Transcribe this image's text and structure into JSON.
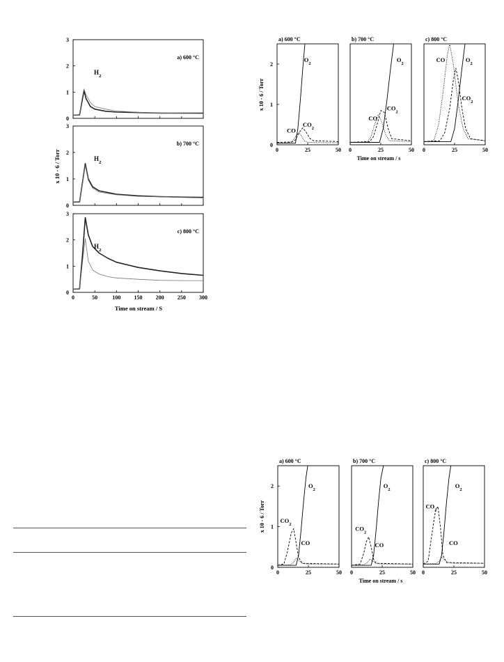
{
  "chart_data": [
    {
      "type": "line",
      "group": "H2 traces (stacked panels)",
      "xlabel": "Time on stream / S",
      "ylabel": "x 10 - 6 / Torr",
      "xlim": [
        0,
        300
      ],
      "ylim": [
        0,
        3
      ],
      "xticks": [
        0,
        50,
        100,
        150,
        200,
        250,
        300
      ],
      "yticks": [
        0,
        1,
        2,
        3
      ],
      "panels": [
        {
          "label": "a) 600 °C",
          "annotation": "H2",
          "series": [
            {
              "style": "solid-thick",
              "x": [
                0,
                15,
                20,
                25,
                30,
                40,
                50,
                75,
                100,
                150,
                200,
                250,
                300
              ],
              "y": [
                0.12,
                0.13,
                0.6,
                1.05,
                0.75,
                0.45,
                0.35,
                0.27,
                0.24,
                0.22,
                0.2,
                0.2,
                0.2
              ]
            },
            {
              "style": "solid-thin",
              "x": [
                0,
                15,
                20,
                25,
                30,
                40,
                50,
                75,
                100,
                150,
                200,
                250,
                300
              ],
              "y": [
                0.12,
                0.14,
                0.7,
                1.12,
                0.9,
                0.6,
                0.45,
                0.35,
                0.28,
                0.23,
                0.2,
                0.19,
                0.18
              ]
            }
          ]
        },
        {
          "label": "b) 700 °C",
          "annotation": "H2",
          "series": [
            {
              "style": "solid-thick",
              "x": [
                0,
                15,
                22,
                28,
                35,
                45,
                60,
                100,
                150,
                200,
                250,
                300
              ],
              "y": [
                0.12,
                0.13,
                0.9,
                1.58,
                1.0,
                0.7,
                0.55,
                0.42,
                0.36,
                0.33,
                0.31,
                0.3
              ]
            },
            {
              "style": "solid-thin",
              "x": [
                0,
                15,
                22,
                28,
                35,
                45,
                60,
                100,
                150,
                200,
                250,
                300
              ],
              "y": [
                0.12,
                0.13,
                0.85,
                1.5,
                0.95,
                0.65,
                0.5,
                0.4,
                0.34,
                0.32,
                0.3,
                0.28
              ]
            }
          ]
        },
        {
          "label": "c) 800 °C",
          "annotation": "H2",
          "series": [
            {
              "style": "solid-thick",
              "x": [
                0,
                15,
                22,
                28,
                35,
                45,
                60,
                80,
                100,
                150,
                200,
                250,
                300
              ],
              "y": [
                0.12,
                0.13,
                1.5,
                2.85,
                2.2,
                1.75,
                1.5,
                1.3,
                1.15,
                0.95,
                0.82,
                0.72,
                0.65
              ]
            },
            {
              "style": "solid-thin",
              "x": [
                0,
                15,
                22,
                28,
                35,
                45,
                60,
                80,
                100,
                150,
                200,
                250,
                300
              ],
              "y": [
                0.12,
                0.13,
                1.2,
                2.05,
                1.2,
                0.85,
                0.7,
                0.6,
                0.55,
                0.5,
                0.46,
                0.45,
                0.45
              ]
            }
          ]
        }
      ]
    },
    {
      "type": "line",
      "group": "top-right row",
      "xlabel": "Time on stream / s",
      "ylabel": "x 10 - 6 / Torr",
      "xlim": [
        0,
        50
      ],
      "ylim": [
        0,
        2.5
      ],
      "xticks": [
        0,
        25,
        50
      ],
      "yticks": [
        0,
        1,
        2
      ],
      "panels": [
        {
          "label": "a) 600 °C",
          "annotations": [
            {
              "text": "O2",
              "at": [
                22,
                2.05
              ]
            },
            {
              "text": "CO",
              "at": [
                8,
                0.3
              ]
            },
            {
              "text": "CO2",
              "at": [
                21,
                0.45
              ]
            }
          ],
          "series": [
            {
              "name": "O2",
              "style": "solid",
              "x": [
                0,
                15,
                17,
                19,
                21,
                22.7
              ],
              "y": [
                0.04,
                0.04,
                0.4,
                1.1,
                1.9,
                2.5
              ]
            },
            {
              "name": "CO",
              "style": "dotted",
              "x": [
                0,
                10,
                13,
                16,
                18,
                20,
                22,
                25,
                50
              ],
              "y": [
                0.04,
                0.05,
                0.1,
                0.25,
                0.3,
                0.22,
                0.1,
                0.06,
                0.05
              ]
            },
            {
              "name": "CO2",
              "style": "dashed",
              "x": [
                0,
                12,
                15,
                18,
                21,
                24,
                27,
                30,
                50
              ],
              "y": [
                0.06,
                0.07,
                0.12,
                0.3,
                0.42,
                0.3,
                0.15,
                0.1,
                0.08
              ]
            }
          ]
        },
        {
          "label": "b) 700 °C",
          "annotations": [
            {
              "text": "O2",
              "at": [
                38,
                2.05
              ]
            },
            {
              "text": "CO",
              "at": [
                15,
                0.6
              ]
            },
            {
              "text": "CO2",
              "at": [
                30,
                0.85
              ]
            }
          ],
          "series": [
            {
              "name": "O2",
              "style": "solid",
              "x": [
                0,
                24,
                27,
                30,
                33,
                35.5
              ],
              "y": [
                0.06,
                0.06,
                0.4,
                1.1,
                1.9,
                2.5
              ]
            },
            {
              "name": "CO",
              "style": "dotted",
              "x": [
                0,
                14,
                17,
                20,
                23,
                26,
                29,
                32,
                50
              ],
              "y": [
                0.06,
                0.07,
                0.2,
                0.5,
                0.75,
                0.55,
                0.25,
                0.1,
                0.08
              ]
            },
            {
              "name": "CO2",
              "style": "dashed",
              "x": [
                0,
                16,
                19,
                22,
                25,
                28,
                31,
                34,
                50
              ],
              "y": [
                0.06,
                0.08,
                0.2,
                0.5,
                0.85,
                0.8,
                0.4,
                0.15,
                0.1
              ]
            }
          ]
        },
        {
          "label": "c) 800 °C",
          "annotations": [
            {
              "text": "CO",
              "at": [
                10,
                2.05
              ]
            },
            {
              "text": "O2",
              "at": [
                34,
                2.05
              ]
            },
            {
              "text": "CO2",
              "at": [
                31,
                1.1
              ]
            }
          ],
          "series": [
            {
              "name": "O2",
              "style": "solid",
              "x": [
                0,
                22,
                25,
                28,
                31,
                33.5
              ],
              "y": [
                0.08,
                0.08,
                0.4,
                1.1,
                1.9,
                2.5
              ]
            },
            {
              "name": "CO",
              "style": "dotted",
              "x": [
                0,
                8,
                12,
                16,
                19,
                21,
                24,
                28,
                32,
                36,
                50
              ],
              "y": [
                0.08,
                0.1,
                0.5,
                1.4,
                2.2,
                2.5,
                2.0,
                1.0,
                0.4,
                0.15,
                0.1
              ]
            },
            {
              "name": "CO2",
              "style": "dashed",
              "x": [
                0,
                13,
                17,
                21,
                24,
                26,
                28,
                31,
                34,
                38,
                50
              ],
              "y": [
                0.08,
                0.1,
                0.3,
                0.9,
                1.6,
                1.9,
                1.6,
                0.9,
                0.4,
                0.15,
                0.1
              ]
            }
          ]
        }
      ]
    },
    {
      "type": "line",
      "group": "bottom-right row",
      "xlabel": "Time on stream / s",
      "ylabel": "x 10 - 6 / Torr",
      "xlim": [
        0,
        50
      ],
      "ylim": [
        0,
        2.5
      ],
      "xticks": [
        0,
        25,
        50
      ],
      "yticks": [
        0,
        1,
        2
      ],
      "panels": [
        {
          "label": "a) 600 °C",
          "annotations": [
            {
              "text": "O2",
              "at": [
                25,
                1.95
              ]
            },
            {
              "text": "CO2",
              "at": [
                2,
                1.1
              ]
            },
            {
              "text": "CO",
              "at": [
                19,
                0.55
              ]
            }
          ],
          "series": [
            {
              "name": "O2",
              "style": "solid",
              "x": [
                0,
                15,
                17,
                19,
                21,
                23,
                24.5
              ],
              "y": [
                0.05,
                0.05,
                0.3,
                0.9,
                1.6,
                2.2,
                2.5
              ]
            },
            {
              "name": "CO2",
              "style": "dashed",
              "x": [
                0,
                5,
                8,
                11,
                13,
                15,
                17,
                20,
                50
              ],
              "y": [
                0.05,
                0.08,
                0.4,
                0.85,
                0.95,
                0.6,
                0.25,
                0.1,
                0.08
              ]
            },
            {
              "name": "CO",
              "style": "dotted",
              "x": [
                0,
                10,
                13,
                15,
                17,
                20,
                25,
                50
              ],
              "y": [
                0.05,
                0.06,
                0.12,
                0.22,
                0.18,
                0.1,
                0.08,
                0.08
              ]
            }
          ]
        },
        {
          "label": "b) 700 °C",
          "annotations": [
            {
              "text": "O2",
              "at": [
                26,
                1.95
              ]
            },
            {
              "text": "CO2",
              "at": [
                3,
                0.9
              ]
            },
            {
              "text": "CO",
              "at": [
                19,
                0.5
              ]
            }
          ],
          "series": [
            {
              "name": "O2",
              "style": "solid",
              "x": [
                0,
                16,
                18,
                20,
                22,
                24,
                26
              ],
              "y": [
                0.05,
                0.05,
                0.3,
                0.9,
                1.6,
                2.2,
                2.5
              ]
            },
            {
              "name": "CO2",
              "style": "dashed",
              "x": [
                0,
                7,
                10,
                12,
                14,
                16,
                18,
                20,
                50
              ],
              "y": [
                0.05,
                0.08,
                0.35,
                0.62,
                0.75,
                0.5,
                0.2,
                0.1,
                0.08
              ]
            },
            {
              "name": "CO",
              "style": "dotted",
              "x": [
                0,
                10,
                13,
                15,
                17,
                20,
                25,
                50
              ],
              "y": [
                0.05,
                0.06,
                0.12,
                0.2,
                0.16,
                0.1,
                0.08,
                0.08
              ]
            }
          ]
        },
        {
          "label": "c) 800 °C",
          "annotations": [
            {
              "text": "O2",
              "at": [
                26,
                1.95
              ]
            },
            {
              "text": "CO2",
              "at": [
                2,
                1.45
              ]
            },
            {
              "text": "CO",
              "at": [
                21,
                0.55
              ]
            }
          ],
          "series": [
            {
              "name": "O2",
              "style": "solid",
              "x": [
                0,
                13,
                15,
                17,
                19,
                21,
                22.5
              ],
              "y": [
                0.08,
                0.08,
                0.3,
                0.9,
                1.6,
                2.2,
                2.5
              ]
            },
            {
              "name": "CO2",
              "style": "dashed",
              "x": [
                0,
                4,
                7,
                10,
                12,
                14,
                16,
                19,
                50
              ],
              "y": [
                0.08,
                0.15,
                0.8,
                1.4,
                1.5,
                1.0,
                0.3,
                0.12,
                0.1
              ]
            },
            {
              "name": "CO",
              "style": "dotted",
              "x": [
                0,
                10,
                13,
                15,
                17,
                20,
                25,
                50
              ],
              "y": [
                0.08,
                0.09,
                0.15,
                0.25,
                0.2,
                0.12,
                0.1,
                0.1
              ]
            }
          ]
        }
      ]
    }
  ]
}
